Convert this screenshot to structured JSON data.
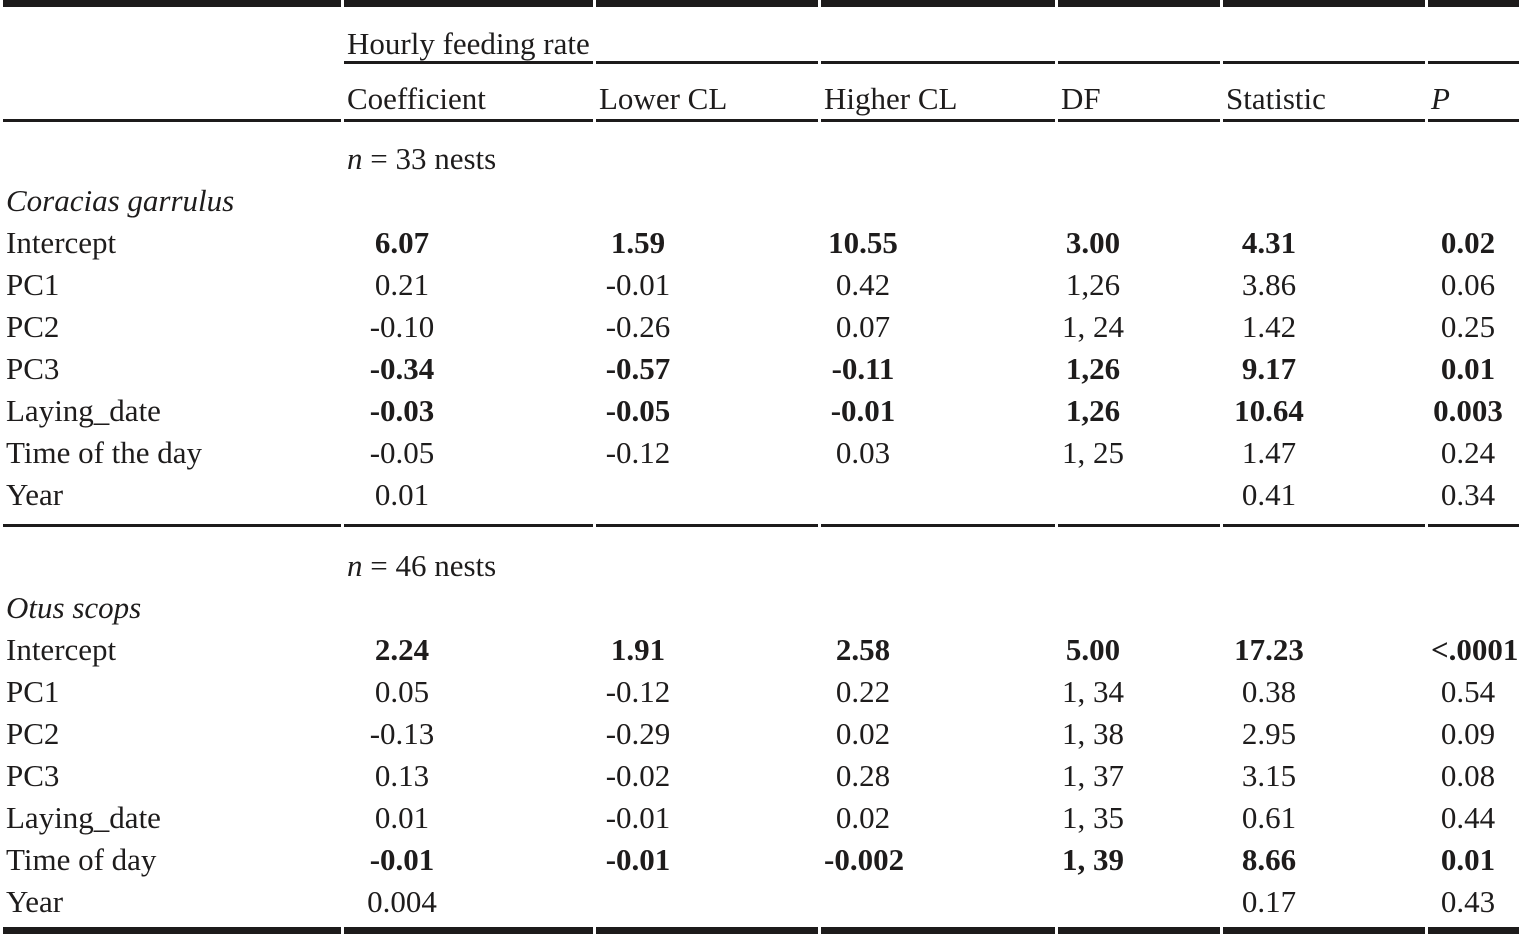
{
  "table": {
    "spanner": "Hourly feeding rate",
    "columns": [
      "",
      "Coefficient",
      "Lower CL",
      "Higher CL",
      "DF",
      "Statistic",
      "P"
    ],
    "sections": [
      {
        "sample_prefix": "n",
        "sample_rest": " = 33 nests",
        "species": "Coracias garrulus",
        "rows": [
          {
            "label": "Intercept",
            "bold": true,
            "cells": [
              "6.07",
              "1.59",
              "10.55",
              "3.00",
              "4.31",
              "0.02"
            ]
          },
          {
            "label": "PC1",
            "bold": false,
            "cells": [
              "0.21",
              "-0.01",
              "0.42",
              "1,26",
              "3.86",
              "0.06"
            ]
          },
          {
            "label": "PC2",
            "bold": false,
            "cells": [
              "-0.10",
              "-0.26",
              "0.07",
              "1, 24",
              "1.42",
              "0.25"
            ]
          },
          {
            "label": "PC3",
            "bold": true,
            "cells": [
              "-0.34",
              "-0.57",
              "-0.11",
              "1,26",
              "9.17",
              "0.01"
            ]
          },
          {
            "label": "Laying_date",
            "bold": true,
            "cells": [
              "-0.03",
              "-0.05",
              "-0.01",
              "1,26",
              "10.64",
              "0.003"
            ]
          },
          {
            "label": "Time of the day",
            "bold": false,
            "cells": [
              "-0.05",
              "-0.12",
              "0.03",
              "1, 25",
              "1.47",
              "0.24"
            ]
          },
          {
            "label": "Year",
            "bold": false,
            "cells": [
              "0.01",
              "",
              "",
              "",
              "0.41",
              "0.34"
            ]
          }
        ]
      },
      {
        "sample_prefix": "n",
        "sample_rest": " = 46 nests",
        "species": "Otus scops",
        "rows": [
          {
            "label": "Intercept",
            "bold": true,
            "cells": [
              "2.24",
              "1.91",
              "2.58",
              "5.00",
              "17.23",
              "<.0001"
            ]
          },
          {
            "label": "PC1",
            "bold": false,
            "cells": [
              "0.05",
              "-0.12",
              "0.22",
              "1, 34",
              "0.38",
              "0.54"
            ]
          },
          {
            "label": "PC2",
            "bold": false,
            "cells": [
              "-0.13",
              "-0.29",
              "0.02",
              "1, 38",
              "2.95",
              "0.09"
            ]
          },
          {
            "label": "PC3",
            "bold": false,
            "cells": [
              "0.13",
              "-0.02",
              "0.28",
              "1, 37",
              "3.15",
              "0.08"
            ]
          },
          {
            "label": "Laying_date",
            "bold": false,
            "cells": [
              "0.01",
              "-0.01",
              "0.02",
              "1, 35",
              "0.61",
              "0.44"
            ]
          },
          {
            "label": "Time of day",
            "bold": true,
            "cells": [
              "-0.01",
              "-0.01",
              "-0.002",
              "1, 39",
              "8.66",
              "0.01"
            ]
          },
          {
            "label": "Year",
            "bold": false,
            "cells": [
              "0.004",
              "",
              "",
              "",
              "0.17",
              "0.43"
            ]
          }
        ]
      }
    ]
  }
}
